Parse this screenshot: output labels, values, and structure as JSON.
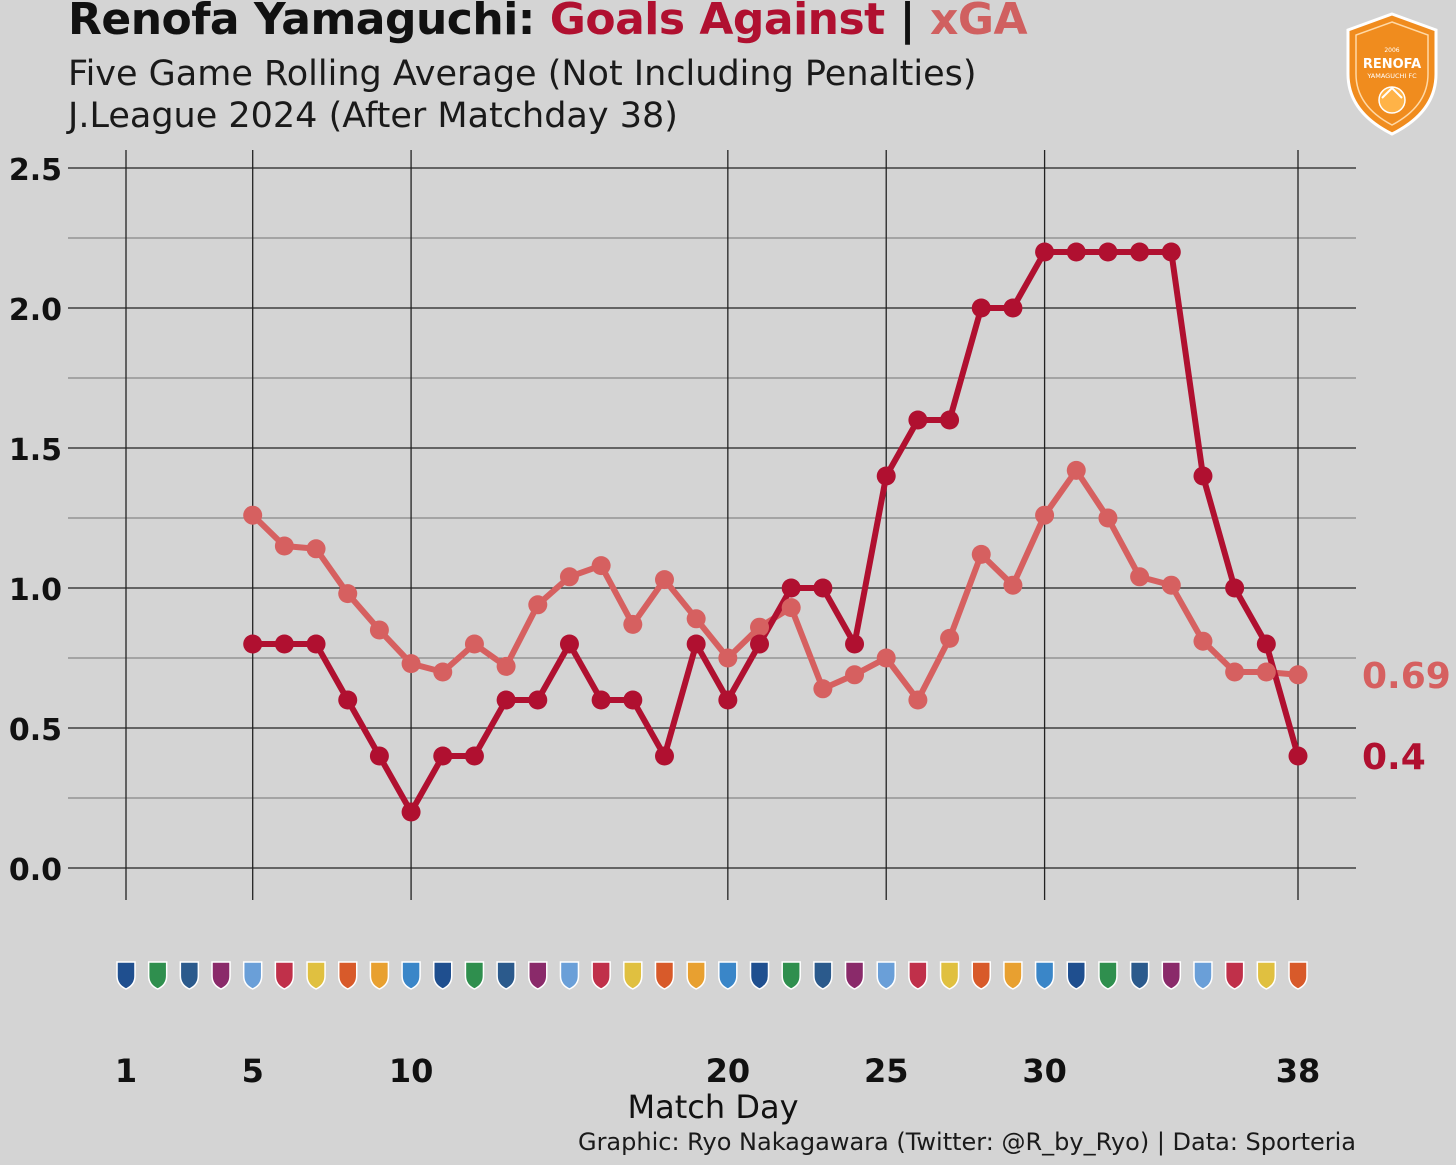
{
  "title": {
    "team": "Renofa Yamaguchi:",
    "ga": "Goals Against",
    "sep": "|",
    "xga": "xGA"
  },
  "subtitle1": "Five Game Rolling Average (Not Including Penalties)",
  "subtitle2": "J.League 2024 (After Matchday 38)",
  "badge": {
    "text": "RENOFA",
    "subtext": "YAMAGUCHI FC",
    "year": "2006"
  },
  "credit": "Graphic: Ryo Nakagawara (Twitter: @R_by_Ryo) | Data: Sporteria",
  "colors": {
    "ga": "#b01030",
    "xga": "#d66060",
    "bg": "#d4d4d4",
    "badge": "#f08c1e"
  },
  "chart_data": {
    "type": "line",
    "title": "Renofa Yamaguchi: Goals Against | xGA",
    "xlabel": "Match Day",
    "ylabel": "",
    "xlim": [
      1,
      38
    ],
    "ylim": [
      0,
      2.5
    ],
    "x_ticks": [
      1,
      5,
      10,
      20,
      25,
      30,
      38
    ],
    "y_ticks": [
      "0.0",
      "0.5",
      "1.0",
      "1.5",
      "2.0",
      "2.5"
    ],
    "grid": true,
    "opponent_logos_row": true,
    "series": [
      {
        "name": "Goals Against",
        "color": "#b01030",
        "end_label": "0.4",
        "x": [
          5,
          6,
          7,
          8,
          9,
          10,
          11,
          12,
          13,
          14,
          15,
          16,
          17,
          18,
          19,
          20,
          21,
          22,
          23,
          24,
          25,
          26,
          27,
          28,
          29,
          30,
          31,
          32,
          33,
          34,
          35,
          36,
          37,
          38
        ],
        "values": [
          0.8,
          0.8,
          0.8,
          0.6,
          0.4,
          0.2,
          0.4,
          0.4,
          0.6,
          0.6,
          0.8,
          0.6,
          0.6,
          0.4,
          0.8,
          0.6,
          0.8,
          1.0,
          1.0,
          0.8,
          1.4,
          1.6,
          1.6,
          2.0,
          2.0,
          2.2,
          2.2,
          2.2,
          2.2,
          2.2,
          1.4,
          1.0,
          0.8,
          0.4
        ]
      },
      {
        "name": "xGA",
        "color": "#d66060",
        "end_label": "0.69",
        "x": [
          5,
          6,
          7,
          8,
          9,
          10,
          11,
          12,
          13,
          14,
          15,
          16,
          17,
          18,
          19,
          20,
          21,
          22,
          23,
          24,
          25,
          26,
          27,
          28,
          29,
          30,
          31,
          32,
          33,
          34,
          35,
          36,
          37,
          38
        ],
        "values": [
          1.26,
          1.15,
          1.14,
          0.98,
          0.85,
          0.73,
          0.7,
          0.8,
          0.72,
          0.94,
          1.04,
          1.08,
          0.87,
          1.03,
          0.89,
          0.75,
          0.86,
          0.93,
          0.64,
          0.69,
          0.75,
          0.6,
          0.82,
          1.12,
          1.01,
          1.26,
          1.42,
          1.25,
          1.04,
          1.01,
          0.81,
          0.7,
          0.7,
          0.69
        ]
      }
    ]
  }
}
